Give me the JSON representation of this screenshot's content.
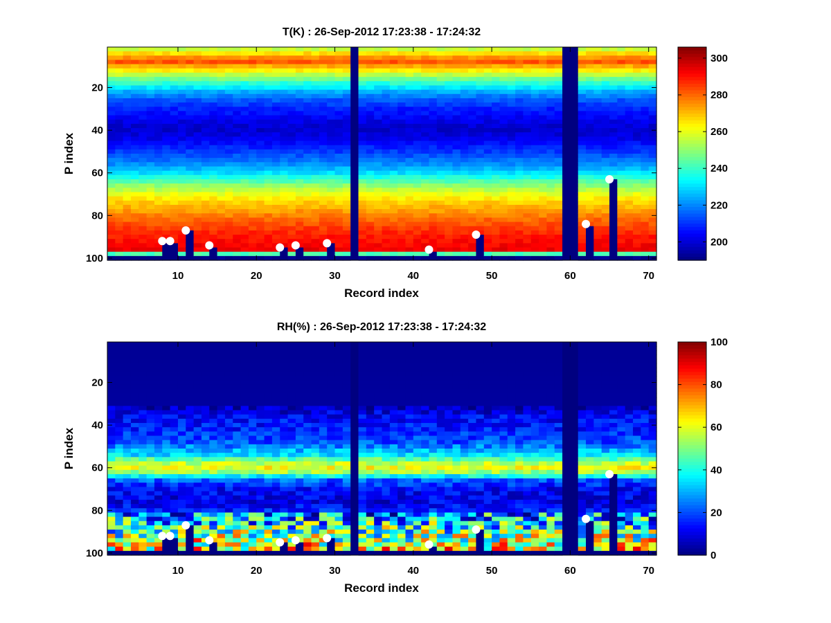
{
  "chart_data": [
    {
      "type": "heatmap",
      "title": "T(K) : 26-Sep-2012 17:23:38 - 17:24:32",
      "xlabel": "Record index",
      "ylabel": "P index",
      "xlim": [
        1,
        71
      ],
      "ylim": [
        1,
        101
      ],
      "y_reversed": true,
      "x_ticks": [
        10,
        20,
        30,
        40,
        50,
        60,
        70
      ],
      "y_ticks": [
        20,
        40,
        60,
        80,
        100
      ],
      "colorbar": {
        "min": 190,
        "max": 306,
        "ticks": [
          200,
          220,
          240,
          260,
          280,
          300
        ],
        "colormap": "jet"
      },
      "missing_records": [
        32,
        59,
        60
      ],
      "profile": [
        [
          1,
          250
        ],
        [
          3,
          262
        ],
        [
          6,
          275
        ],
        [
          8,
          282
        ],
        [
          10,
          272
        ],
        [
          14,
          255
        ],
        [
          18,
          238
        ],
        [
          22,
          224
        ],
        [
          26,
          214
        ],
        [
          30,
          208
        ],
        [
          34,
          204
        ],
        [
          37,
          200
        ],
        [
          40,
          199
        ],
        [
          44,
          202
        ],
        [
          48,
          208
        ],
        [
          52,
          214
        ],
        [
          56,
          221
        ],
        [
          60,
          230
        ],
        [
          63,
          240
        ],
        [
          66,
          250
        ],
        [
          70,
          260
        ],
        [
          74,
          268
        ],
        [
          78,
          274
        ],
        [
          82,
          280
        ],
        [
          86,
          285
        ],
        [
          90,
          289
        ],
        [
          94,
          292
        ],
        [
          97,
          294
        ],
        [
          99,
          190
        ],
        [
          101,
          190
        ]
      ],
      "markers": [
        {
          "record": 8,
          "p": 92
        },
        {
          "record": 9,
          "p": 92
        },
        {
          "record": 11,
          "p": 87
        },
        {
          "record": 14,
          "p": 94
        },
        {
          "record": 23,
          "p": 95
        },
        {
          "record": 25,
          "p": 94
        },
        {
          "record": 29,
          "p": 93
        },
        {
          "record": 42,
          "p": 96
        },
        {
          "record": 48,
          "p": 89
        },
        {
          "record": 62,
          "p": 84
        },
        {
          "record": 65,
          "p": 63
        }
      ]
    },
    {
      "type": "heatmap",
      "title": "RH(%) : 26-Sep-2012 17:23:38 - 17:24:32",
      "xlabel": "Record index",
      "ylabel": "P index",
      "xlim": [
        1,
        71
      ],
      "ylim": [
        1,
        101
      ],
      "y_reversed": true,
      "x_ticks": [
        10,
        20,
        30,
        40,
        50,
        60,
        70
      ],
      "y_ticks": [
        20,
        40,
        60,
        80,
        100
      ],
      "colorbar": {
        "min": 0,
        "max": 100,
        "ticks": [
          0,
          20,
          40,
          60,
          80,
          100
        ],
        "colormap": "jet"
      },
      "missing_records": [
        32,
        59,
        60
      ],
      "profile": [
        [
          1,
          2
        ],
        [
          30,
          3
        ],
        [
          36,
          12
        ],
        [
          42,
          15
        ],
        [
          48,
          20
        ],
        [
          54,
          35
        ],
        [
          57,
          52
        ],
        [
          59,
          62
        ],
        [
          61,
          60
        ],
        [
          63,
          45
        ],
        [
          66,
          22
        ],
        [
          70,
          12
        ],
        [
          76,
          10
        ],
        [
          80,
          15
        ],
        [
          84,
          22
        ],
        [
          88,
          32
        ],
        [
          92,
          42
        ],
        [
          96,
          52
        ],
        [
          98,
          55
        ],
        [
          99,
          0
        ],
        [
          101,
          0
        ]
      ],
      "markers": [
        {
          "record": 8,
          "p": 92
        },
        {
          "record": 9,
          "p": 92
        },
        {
          "record": 11,
          "p": 87
        },
        {
          "record": 14,
          "p": 94
        },
        {
          "record": 23,
          "p": 95
        },
        {
          "record": 25,
          "p": 94
        },
        {
          "record": 29,
          "p": 93
        },
        {
          "record": 42,
          "p": 96
        },
        {
          "record": 48,
          "p": 89
        },
        {
          "record": 62,
          "p": 84
        },
        {
          "record": 65,
          "p": 63
        }
      ]
    }
  ]
}
